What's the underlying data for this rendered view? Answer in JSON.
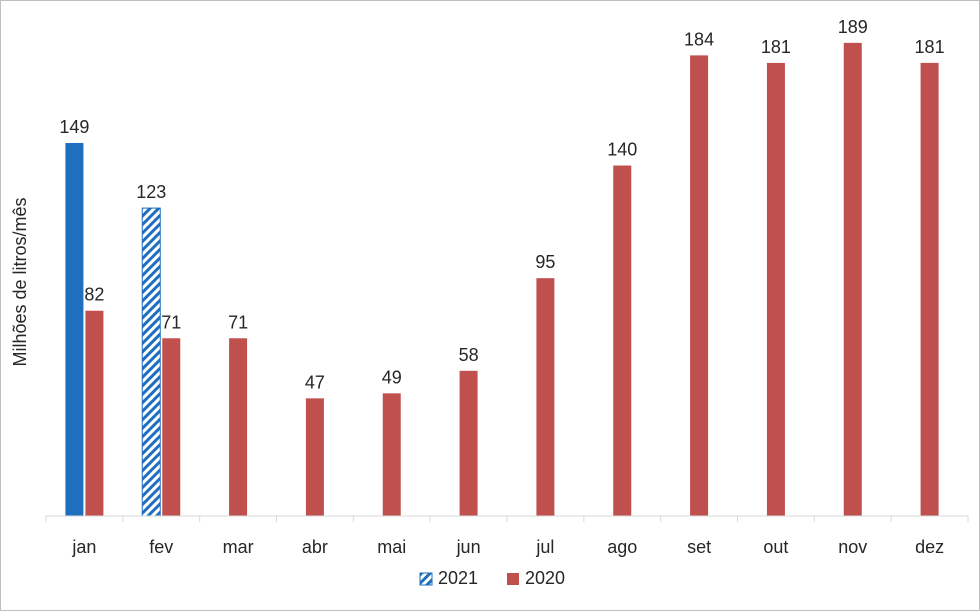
{
  "chart_data": {
    "type": "bar",
    "ylabel": "Milhões de litros/mês",
    "xlabel": "",
    "title": "",
    "categories": [
      "jan",
      "fev",
      "mar",
      "abr",
      "mai",
      "jun",
      "jul",
      "ago",
      "set",
      "out",
      "nov",
      "dez"
    ],
    "ylim": [
      0,
      200
    ],
    "grid": false,
    "legend_position": "bottom",
    "series": [
      {
        "name": "2021",
        "values": [
          149,
          123,
          null,
          null,
          null,
          null,
          null,
          null,
          null,
          null,
          null,
          null
        ],
        "labels": [
          "149",
          "123",
          "",
          "",
          "",
          "",
          "",
          "",
          "",
          "",
          "",
          ""
        ],
        "colors": [
          "#1f6fbf",
          "#1f6fbf"
        ],
        "patterns": [
          "solid",
          "hatched"
        ]
      },
      {
        "name": "2020",
        "values": [
          82,
          71,
          71,
          47,
          49,
          58,
          95,
          140,
          184,
          181,
          189,
          181
        ],
        "labels": [
          "82",
          "71",
          "71",
          "47",
          "49",
          "58",
          "95",
          "140",
          "184",
          "181",
          "189",
          "181"
        ],
        "color": "#c0504d"
      }
    ]
  }
}
